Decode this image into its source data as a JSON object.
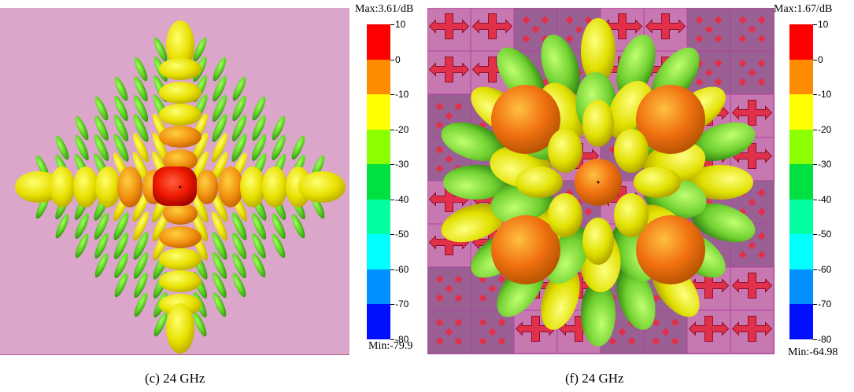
{
  "figures": [
    {
      "id": "c",
      "caption": "(c) 24 GHz",
      "max_label": "Max:3.61/dB",
      "min_label": "Min:-79.9",
      "background": "#dca6cb",
      "scale_ticks": [
        "10",
        "0",
        "-10",
        "-20",
        "-30",
        "-40",
        "-50",
        "-60",
        "-70",
        "-80"
      ]
    },
    {
      "id": "f",
      "caption": "(f) 24 GHz",
      "max_label": "Max:1.67/dB",
      "min_label": "Min:-64.98",
      "background": "#9a5f93",
      "scale_ticks": [
        "10",
        "0",
        "-10",
        "-20",
        "-30",
        "-40",
        "-50",
        "-60",
        "-70",
        "-80"
      ]
    }
  ],
  "colorbar_colors": [
    "#ff0000",
    "#ff8c00",
    "#ffff00",
    "#8cff00",
    "#00e040",
    "#00ffa0",
    "#00ffff",
    "#0090ff",
    "#0010ff"
  ]
}
